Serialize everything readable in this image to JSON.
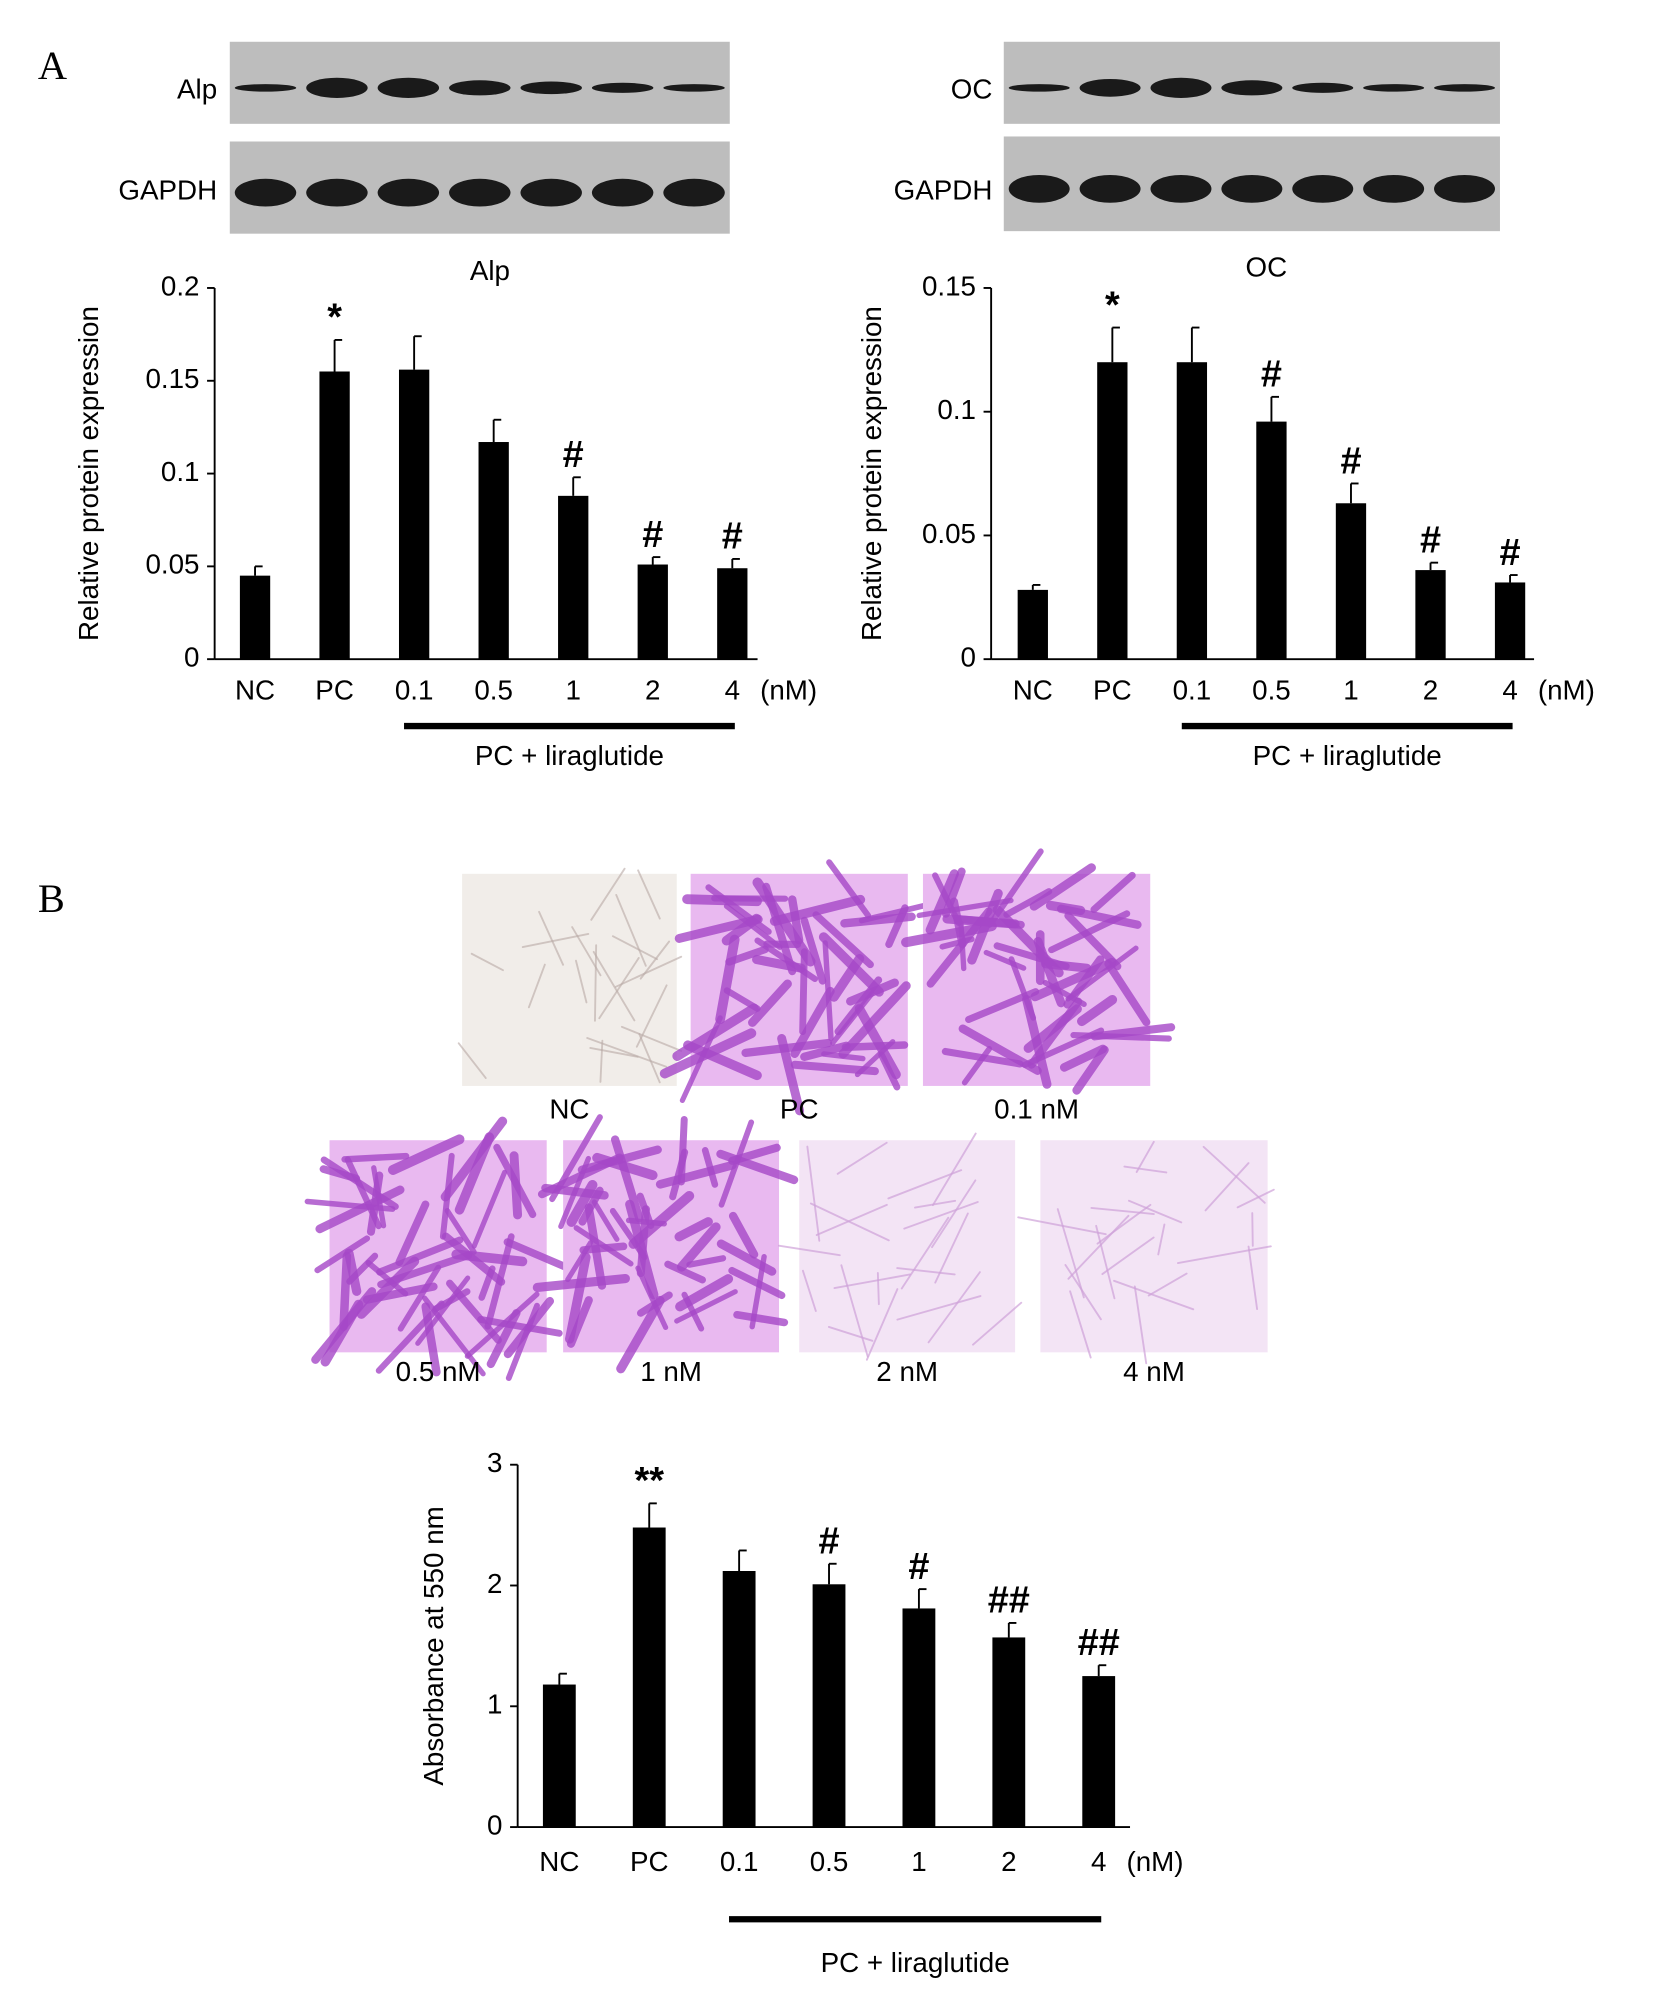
{
  "figure": {
    "panels": [
      "A",
      "B"
    ],
    "blots": [
      "Alp",
      "GAPDH",
      "OC",
      "GAPDH"
    ],
    "micrographs": [
      "NC",
      "PC",
      "0.1 nM",
      "0.5 nM",
      "1 nM",
      "2 nM",
      "4 nM"
    ]
  },
  "chart_data": [
    {
      "type": "bar",
      "title": "Alp",
      "y_label": "Relative protein expression",
      "categories": [
        "NC",
        "PC",
        "0.1",
        "0.5",
        "1",
        "2",
        "4"
      ],
      "x_unit": "(nM)",
      "group_label": "PC + liraglutide",
      "values": [
        0.045,
        0.155,
        0.156,
        0.117,
        0.088,
        0.051,
        0.049
      ],
      "errors": [
        0.005,
        0.017,
        0.018,
        0.012,
        0.01,
        0.004,
        0.005
      ],
      "annotations": [
        null,
        "*",
        null,
        null,
        "#",
        "#",
        "#"
      ],
      "color": "#000000",
      "ylim": [
        0,
        0.2
      ],
      "yticks": [
        0,
        0.05,
        0.1,
        0.15,
        0.2
      ]
    },
    {
      "type": "bar",
      "title": "OC",
      "y_label": "Relative protein expression",
      "categories": [
        "NC",
        "PC",
        "0.1",
        "0.5",
        "1",
        "2",
        "4"
      ],
      "x_unit": "(nM)",
      "group_label": "PC + liraglutide",
      "values": [
        0.028,
        0.12,
        0.12,
        0.096,
        0.063,
        0.036,
        0.031
      ],
      "errors": [
        0.002,
        0.014,
        0.014,
        0.01,
        0.008,
        0.003,
        0.003
      ],
      "annotations": [
        null,
        "*",
        null,
        "#",
        "#",
        "#",
        "#"
      ],
      "color": "#000000",
      "ylim": [
        0,
        0.15
      ],
      "yticks": [
        0,
        0.05,
        0.1,
        0.15
      ]
    },
    {
      "type": "bar",
      "y_label": "Absorbance at 550 nm",
      "categories": [
        "NC",
        "PC",
        "0.1",
        "0.5",
        "1",
        "2",
        "4"
      ],
      "x_unit": "(nM)",
      "group_label": "PC + liraglutide",
      "values": [
        1.18,
        2.48,
        2.12,
        2.01,
        1.81,
        1.57,
        1.25
      ],
      "errors": [
        0.09,
        0.2,
        0.17,
        0.17,
        0.16,
        0.12,
        0.09
      ],
      "annotations": [
        null,
        "**",
        null,
        "#",
        "#",
        "##",
        "##"
      ],
      "color": "#000000",
      "ylim": [
        0,
        3
      ],
      "yticks": [
        0,
        1,
        2,
        3
      ]
    }
  ]
}
